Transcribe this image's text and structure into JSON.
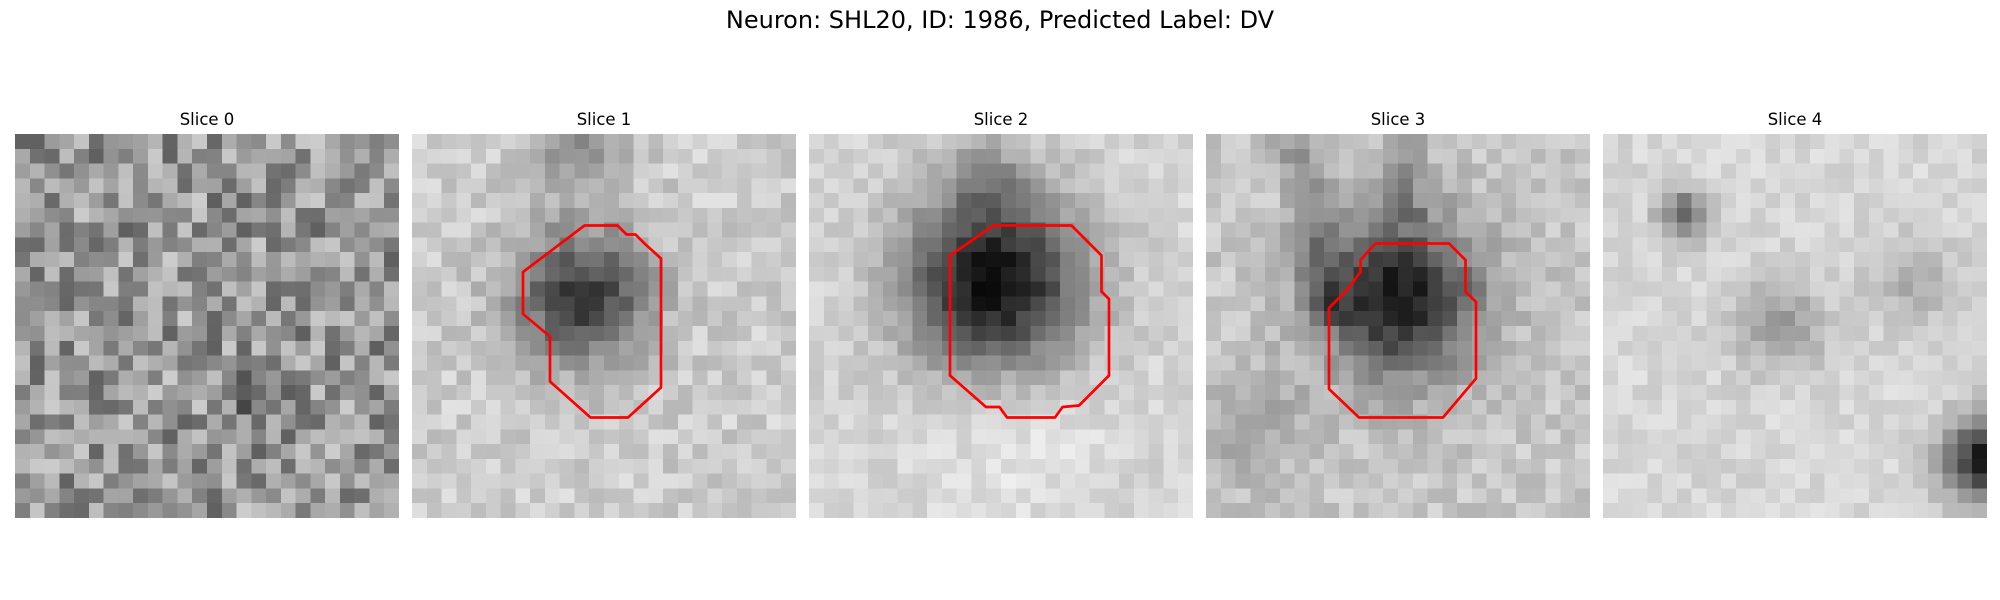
{
  "figure": {
    "title": "Neuron: SHL20, ID: 1986, Predicted Label: DV"
  },
  "colors": {
    "contour": "#ff0000",
    "background": "#ffffff"
  },
  "panels": [
    {
      "title": "Slice 0",
      "has_contour": false
    },
    {
      "title": "Slice 1",
      "has_contour": true
    },
    {
      "title": "Slice 2",
      "has_contour": true
    },
    {
      "title": "Slice 3",
      "has_contour": true
    },
    {
      "title": "Slice 4",
      "has_contour": false
    }
  ]
}
